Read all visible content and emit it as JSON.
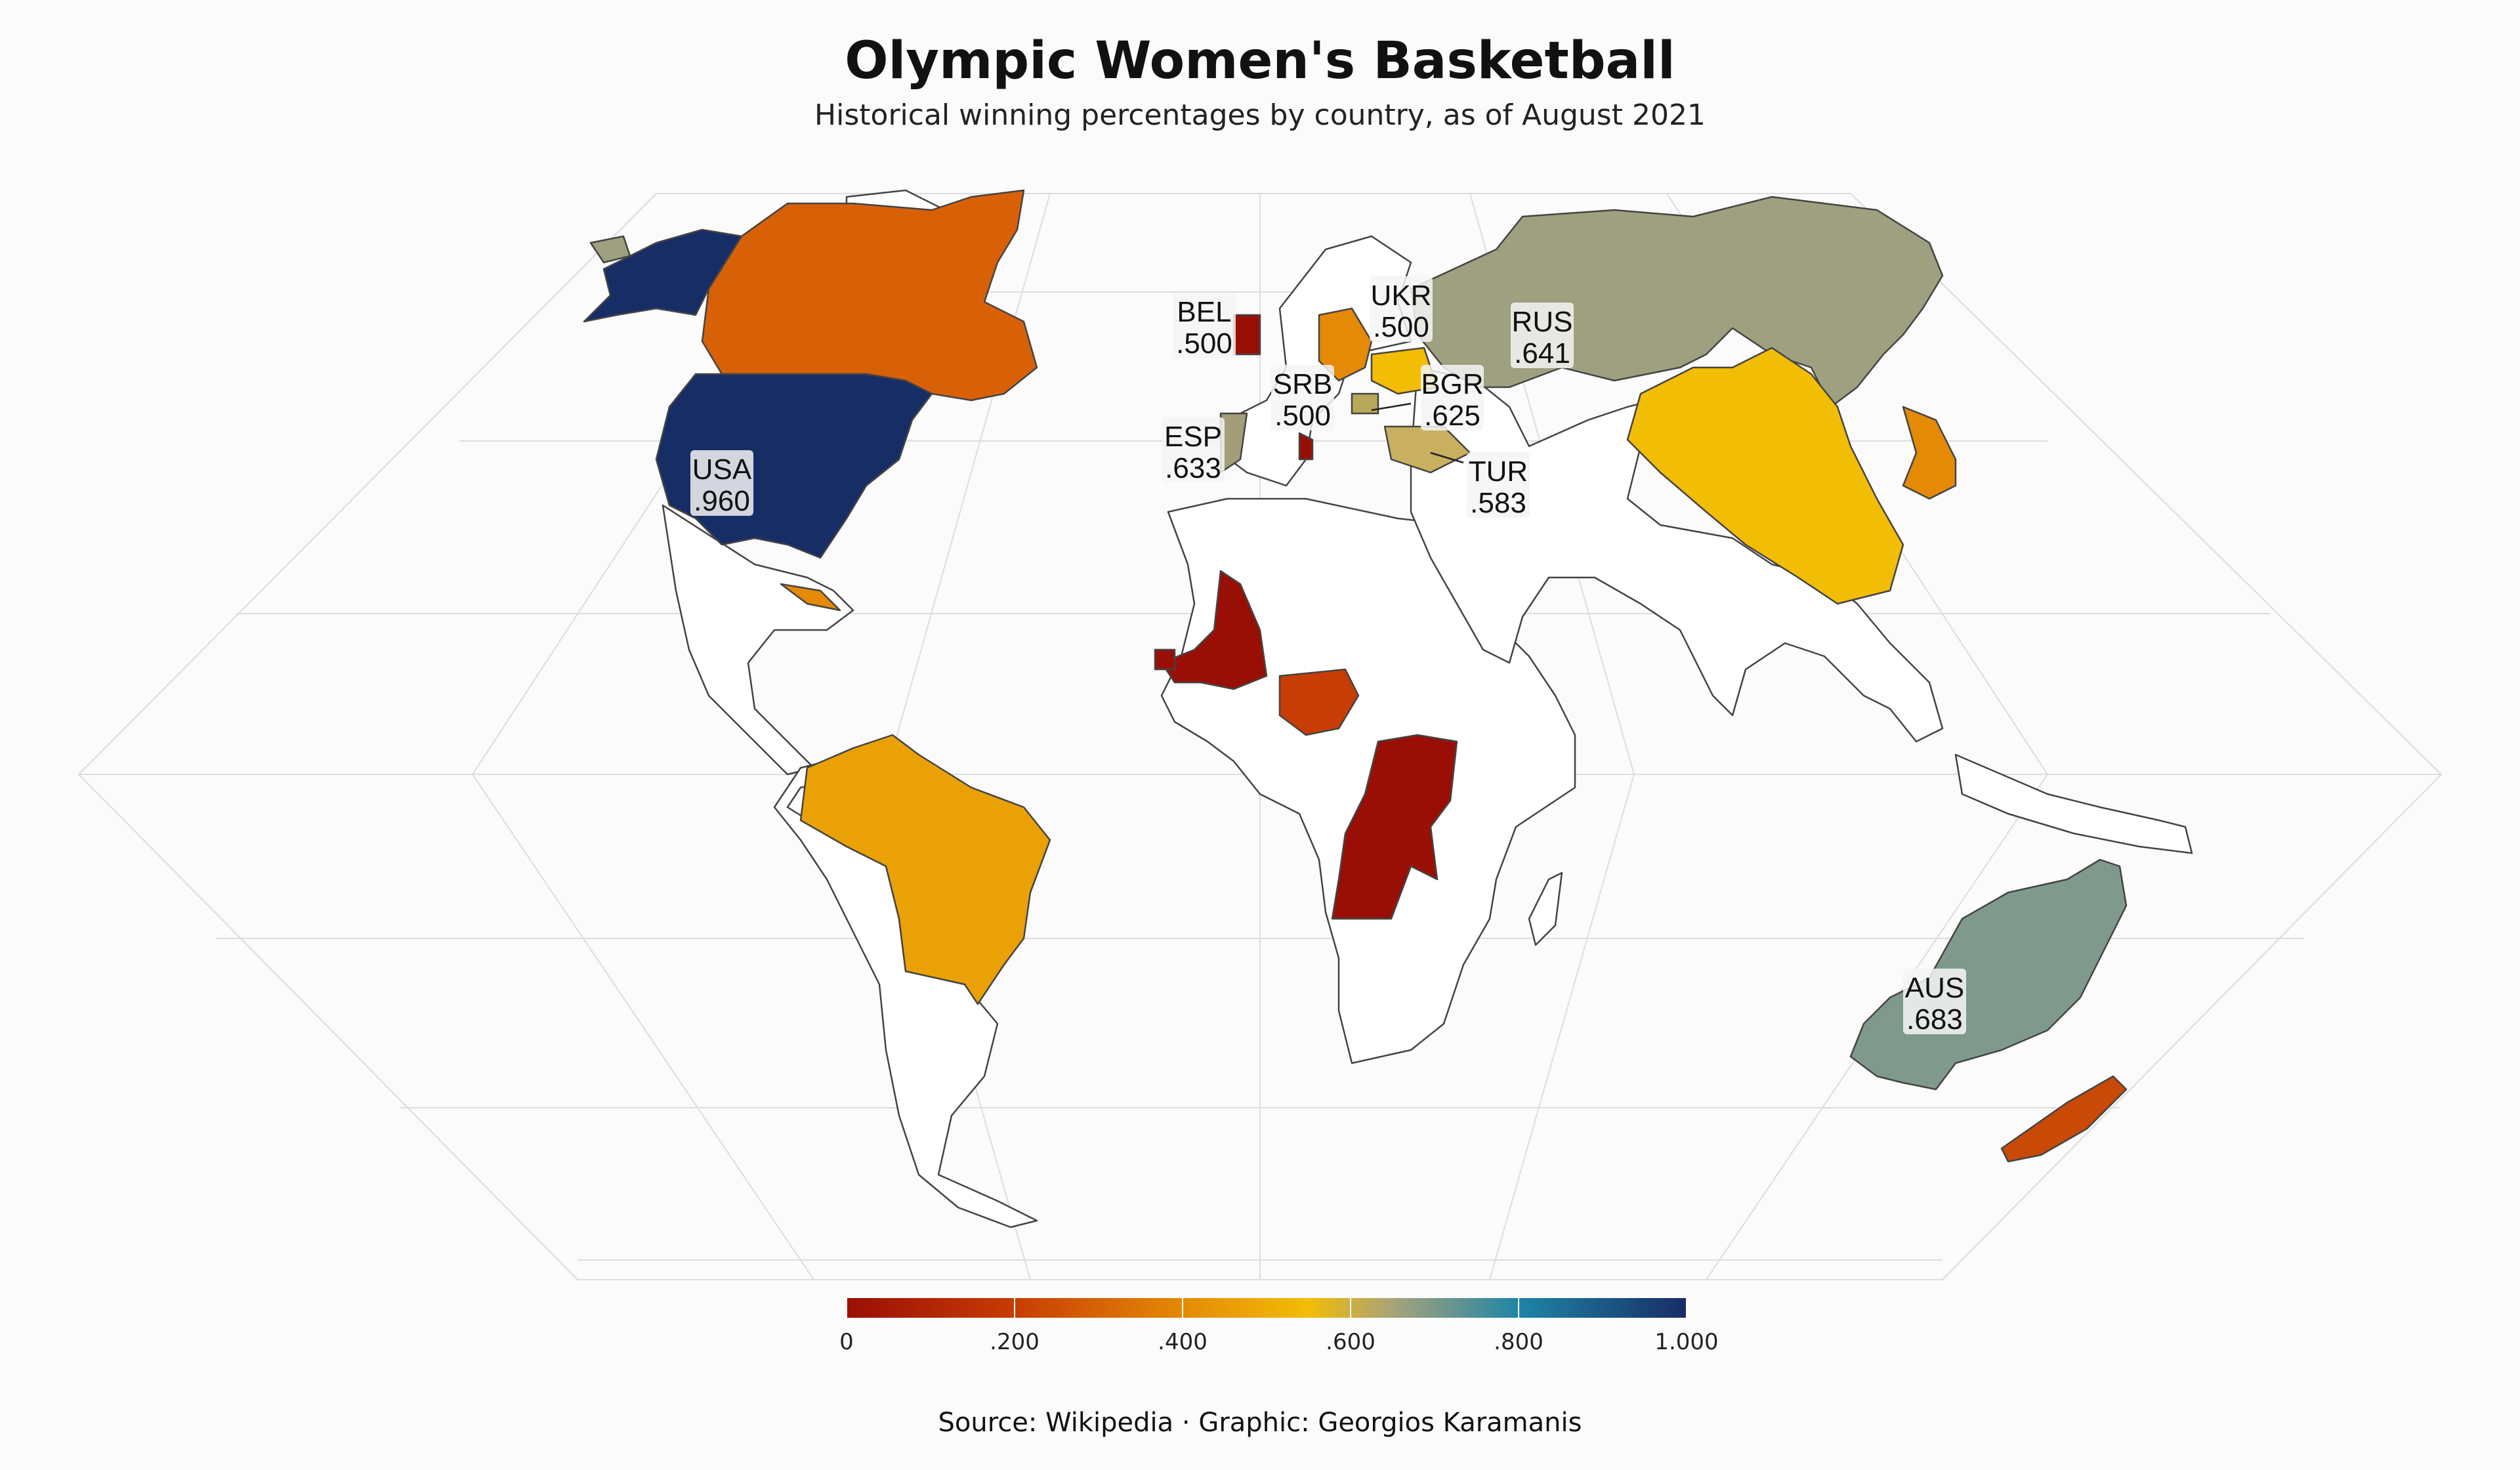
{
  "title": "Olympic Women's Basketball",
  "subtitle": "Historical winning percentages by country, as of August 2021",
  "source": "Source: Wikipedia · Graphic: Georgios Karamanis",
  "colors": {
    "background": "#fbfbfb",
    "land_unfilled": "#ffffff",
    "border": "#444444",
    "graticule": "#dddddd"
  },
  "legend": {
    "ticks": [
      "0",
      ".200",
      ".400",
      ".600",
      ".800",
      "1.000"
    ],
    "range": [
      0,
      1
    ],
    "stops": [
      {
        "v": 0.0,
        "color": "#9a0f05"
      },
      {
        "v": 0.2,
        "color": "#c83c05"
      },
      {
        "v": 0.4,
        "color": "#e48a06"
      },
      {
        "v": 0.55,
        "color": "#f2bd05"
      },
      {
        "v": 0.65,
        "color": "#a8a37a"
      },
      {
        "v": 0.8,
        "color": "#1f85a6"
      },
      {
        "v": 1.0,
        "color": "#172d66"
      }
    ]
  },
  "countries": [
    {
      "code": "USA",
      "value": ".960",
      "pct": 0.96
    },
    {
      "code": "AUS",
      "value": ".683",
      "pct": 0.683
    },
    {
      "code": "RUS",
      "value": ".641",
      "pct": 0.641
    },
    {
      "code": "ESP",
      "value": ".633",
      "pct": 0.633
    },
    {
      "code": "BGR",
      "value": ".625",
      "pct": 0.625
    },
    {
      "code": "TUR",
      "value": ".583",
      "pct": 0.583
    },
    {
      "code": "BEL",
      "value": ".500",
      "pct": 0.5
    },
    {
      "code": "SRB",
      "value": ".500",
      "pct": 0.5
    },
    {
      "code": "UKR",
      "value": ".500",
      "pct": 0.5
    }
  ]
}
